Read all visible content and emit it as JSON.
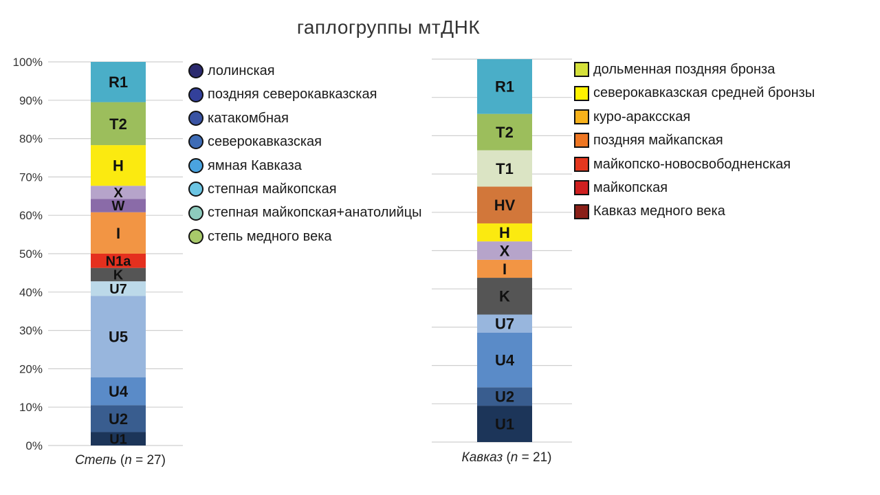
{
  "chart_data": {
    "type": "stacked-bar",
    "title": "гаплогруппы мтДНК",
    "y_axis": {
      "ylim": [
        0,
        100
      ],
      "ticks": [
        "0%",
        "10%",
        "20%",
        "30%",
        "40%",
        "50%",
        "60%",
        "70%",
        "80%",
        "90%",
        "100%"
      ],
      "grid": true
    },
    "bars": [
      {
        "category": {
          "name": "Степь",
          "n": "27",
          "prefix": "(n = ",
          "suffix": ")"
        },
        "segments": [
          {
            "label": "U1",
            "from": 0,
            "to": 3.5,
            "color": "#1c3559"
          },
          {
            "label": "U2",
            "from": 3.5,
            "to": 10.5,
            "color": "#395d8f"
          },
          {
            "label": "U4",
            "from": 10.5,
            "to": 17.8,
            "color": "#5a8bc8"
          },
          {
            "label": "U5",
            "from": 17.8,
            "to": 39.0,
            "color": "#98b6dd"
          },
          {
            "label": "U7",
            "from": 39.0,
            "to": 42.8,
            "color": "#bcd9e9"
          },
          {
            "label": "K",
            "from": 42.8,
            "to": 46.3,
            "color": "#555555"
          },
          {
            "label": "N1a",
            "from": 46.3,
            "to": 50.0,
            "color": "#e5301e"
          },
          {
            "label": "I",
            "from": 50.0,
            "to": 60.8,
            "color": "#f29544"
          },
          {
            "label": "W",
            "from": 60.8,
            "to": 64.3,
            "color": "#8a6ba8"
          },
          {
            "label": "X",
            "from": 64.3,
            "to": 67.7,
            "color": "#b6a4ca"
          },
          {
            "label": "H",
            "from": 67.7,
            "to": 78.3,
            "color": "#fbea10"
          },
          {
            "label": "T2",
            "from": 78.3,
            "to": 89.5,
            "color": "#9cbe5c"
          },
          {
            "label": "R1",
            "from": 89.5,
            "to": 100,
            "color": "#4aaec8"
          }
        ]
      },
      {
        "category": {
          "name": "Кавказ",
          "n": "21",
          "prefix": "(n = ",
          "suffix": ")"
        },
        "segments": [
          {
            "label": "U1",
            "from": 0,
            "to": 9.5,
            "color": "#1c3559"
          },
          {
            "label": "U2",
            "from": 9.5,
            "to": 14.3,
            "color": "#395d8f"
          },
          {
            "label": "U4",
            "from": 14.3,
            "to": 28.6,
            "color": "#5a8bc8"
          },
          {
            "label": "U7",
            "from": 28.6,
            "to": 33.3,
            "color": "#98b6dd"
          },
          {
            "label": "K",
            "from": 33.3,
            "to": 42.9,
            "color": "#555555"
          },
          {
            "label": "I",
            "from": 42.9,
            "to": 47.6,
            "color": "#f29544"
          },
          {
            "label": "X",
            "from": 47.6,
            "to": 52.4,
            "color": "#b6a4ca"
          },
          {
            "label": "H",
            "from": 52.4,
            "to": 57.1,
            "color": "#fbea10"
          },
          {
            "label": "HV",
            "from": 57.1,
            "to": 66.7,
            "color": "#d2773a"
          },
          {
            "label": "T1",
            "from": 66.7,
            "to": 76.2,
            "color": "#dbe4c4"
          },
          {
            "label": "T2",
            "from": 76.2,
            "to": 85.7,
            "color": "#9cbe5c"
          },
          {
            "label": "R1",
            "from": 85.7,
            "to": 100,
            "color": "#4aaec8"
          }
        ]
      }
    ]
  },
  "legend_steppe": {
    "placement": "right-of-first-bar",
    "marker": "circle",
    "items": [
      {
        "label": "лолинская",
        "color": "#2b2a6e"
      },
      {
        "label": "поздняя северокавказская",
        "color": "#33409a"
      },
      {
        "label": "катакомбная",
        "color": "#3953a3"
      },
      {
        "label": "северокавказская",
        "color": "#3e6cb6"
      },
      {
        "label": "ямная Кавказа",
        "color": "#4aa3df"
      },
      {
        "label": "степная майкопская",
        "color": "#6cc5e3"
      },
      {
        "label": "степная майкопская+анатолийцы",
        "color": "#8dcbbd"
      },
      {
        "label": "степь медного века",
        "color": "#a8c96a"
      }
    ]
  },
  "legend_caucasus": {
    "placement": "right-of-second-bar",
    "marker": "square",
    "items": [
      {
        "label": "дольменная поздняя бронза",
        "color": "#d4e03a"
      },
      {
        "label": "северокавказская средней бронзы",
        "color": "#fff200"
      },
      {
        "label": "куро-араксская",
        "color": "#f7b21b"
      },
      {
        "label": "поздняя майкапская",
        "color": "#ee7622"
      },
      {
        "label": "майкопско-новосвободненская",
        "color": "#e5371e"
      },
      {
        "label": "майкопская",
        "color": "#cf2020"
      },
      {
        "label": "Кавказ медного века",
        "color": "#8a1f18"
      }
    ]
  }
}
